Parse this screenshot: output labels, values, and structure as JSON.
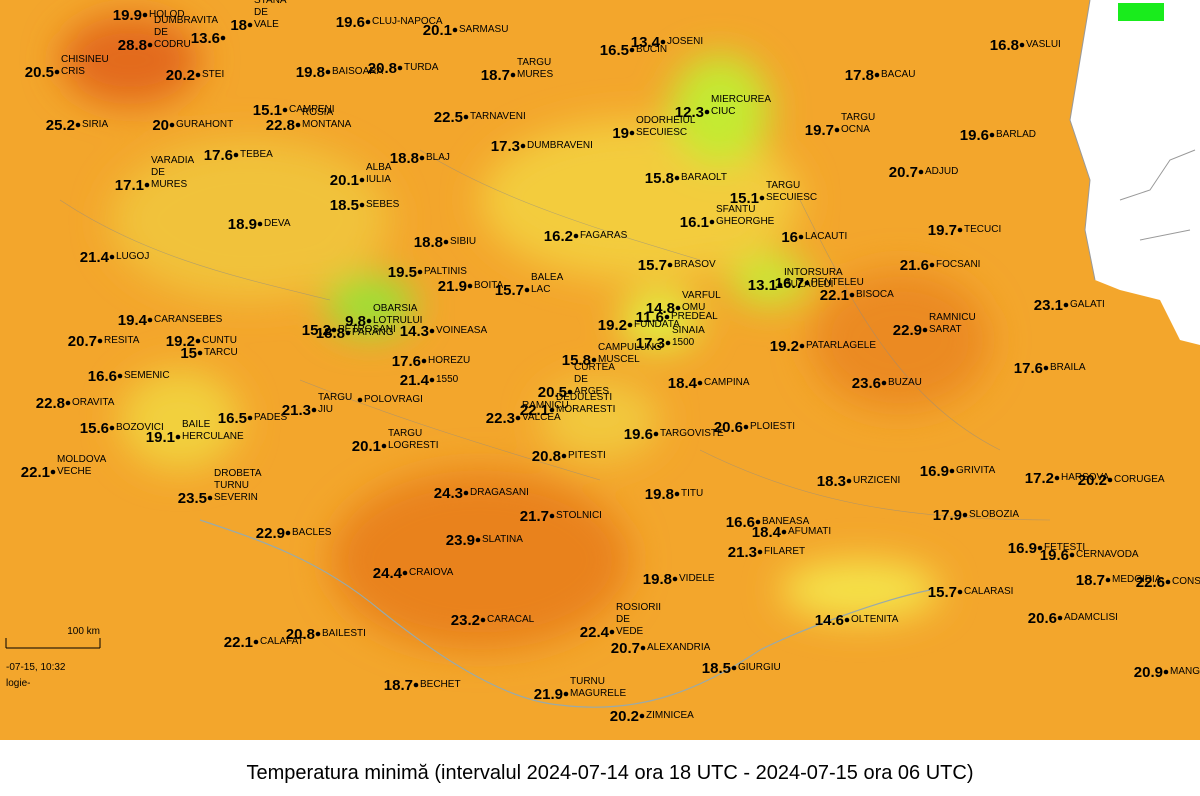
{
  "map": {
    "caption": "Temperatura minimă (intervalul 2024-07-14 ora 18 UTC - 2024-07-15 ora 06 UTC)",
    "scale_label": "100 km",
    "footer_lines": [
      "-07-15, 10:32",
      "logie-"
    ],
    "stations": [
      {
        "name": [
          "HOLOD"
        ],
        "value": 19.9
      },
      {
        "name": [
          "STANA",
          "DE",
          "VALE"
        ],
        "value": 18
      },
      {
        "name": [
          "CLUJ-NAPOCA"
        ],
        "value": 19.6
      },
      {
        "name": [
          "SARMASU"
        ],
        "value": 20.1
      },
      {
        "name": [
          "JOSENI"
        ],
        "value": 13.4
      },
      {
        "name": [
          "BUCIN"
        ],
        "value": 16.5
      },
      {
        "name": [
          "VASLUI"
        ],
        "value": 16.8
      },
      {
        "name": [
          "CHISINEU",
          "CRIS"
        ],
        "value": 20.5
      },
      {
        "name": [
          "DUMBRAVITA",
          "DE",
          "CODRU"
        ],
        "value": 28.8
      },
      {
        "value": 13.6
      },
      {
        "name": [
          "STEI"
        ],
        "value": 20.2
      },
      {
        "name": [
          "BAISOARA"
        ],
        "value": 19.8
      },
      {
        "name": [
          "TURDA"
        ],
        "value": 20.8
      },
      {
        "name": [
          "TARGU",
          "MURES"
        ],
        "value": 18.7
      },
      {
        "name": [
          "BACAU"
        ],
        "value": 17.8
      },
      {
        "name": [
          "MIERCUREA",
          "CIUC"
        ],
        "value": 12.3
      },
      {
        "name": [
          "ODORHEIUL",
          "SECUIESC"
        ],
        "value": 19
      },
      {
        "name": [
          "TARGU",
          "OCNA"
        ],
        "value": 19.7
      },
      {
        "name": [
          "BARLAD"
        ],
        "value": 19.6
      },
      {
        "name": [
          "SIRIA"
        ],
        "value": 25.2
      },
      {
        "name": [
          "GURAHONT"
        ],
        "value": 20
      },
      {
        "name": [
          "CAMPENI"
        ],
        "value": 15.1
      },
      {
        "name": [
          "ROSIA",
          "MONTANA"
        ],
        "value": 22.8
      },
      {
        "name": [
          "TARNAVENI"
        ],
        "value": 22.5
      },
      {
        "name": [
          "DUMBRAVENI"
        ],
        "value": 17.3
      },
      {
        "name": [
          "VARADIA",
          "DE",
          "MURES"
        ],
        "value": 17.1
      },
      {
        "name": [
          "TEBEA"
        ],
        "value": 17.6
      },
      {
        "name": [
          "ALBA",
          "IULIA"
        ],
        "value": 20.1
      },
      {
        "name": [
          "BLAJ"
        ],
        "value": 18.8
      },
      {
        "name": [
          "SEBES"
        ],
        "value": 18.5
      },
      {
        "name": [
          "BARAOLT"
        ],
        "value": 15.8
      },
      {
        "name": [
          "ADJUD"
        ],
        "value": 20.7
      },
      {
        "name": [
          "SFANTU",
          "GHEORGHE"
        ],
        "value": 16.1
      },
      {
        "name": [
          "TARGU",
          "SECUIESC"
        ],
        "value": 15.1
      },
      {
        "name": [
          "DEVA"
        ],
        "value": 18.9
      },
      {
        "name": [
          "FAGARAS"
        ],
        "value": 16.2
      },
      {
        "name": [
          "LACAUTI"
        ],
        "value": 16
      },
      {
        "name": [
          "TECUCI"
        ],
        "value": 19.7
      },
      {
        "name": [
          "LUGOJ"
        ],
        "value": 21.4
      },
      {
        "name": [
          "SIBIU"
        ],
        "value": 18.8
      },
      {
        "name": [
          "BRASOV"
        ],
        "value": 15.7
      },
      {
        "name": [
          "INTORSURA",
          "BUZAULUI"
        ],
        "value": 13.1
      },
      {
        "name": [
          "FOCSANI"
        ],
        "value": 21.6
      },
      {
        "name": [
          "PALTINIS"
        ],
        "value": 19.5
      },
      {
        "name": [
          "BOITA"
        ],
        "value": 21.9
      },
      {
        "name": [
          "BALEA",
          "LAC"
        ],
        "value": 15.7
      },
      {
        "name": [
          "VARFUL",
          "OMU"
        ],
        "value": 14.8
      },
      {
        "name": [
          "PENTELEU"
        ],
        "value": 16.7
      },
      {
        "name": [
          "BISOCA"
        ],
        "value": 22.1
      },
      {
        "name": [
          "GALATI"
        ],
        "value": 23.1
      },
      {
        "name": [
          "OBARSIA",
          "LOTRULUI"
        ],
        "value": 9.8
      },
      {
        "name": [
          "CARANSEBES"
        ],
        "value": 19.4
      },
      {
        "name": [
          "PETROSANI"
        ],
        "value": 15.2
      },
      {
        "name": [
          "PARANG"
        ],
        "value": 18.8
      },
      {
        "name": [
          "VOINEASA"
        ],
        "value": 14.3
      },
      {
        "name": [
          "FUNDATA"
        ],
        "value": 19.2
      },
      {
        "name": [
          "PREDEAL"
        ],
        "value": 11.6
      },
      {
        "name": [
          "SINAIA",
          "1500"
        ],
        "value": 17.3
      },
      {
        "name": [
          "RAMNICU",
          "SARAT"
        ],
        "value": 22.9
      },
      {
        "name": [
          "RESITA"
        ],
        "value": 20.7
      },
      {
        "name": [
          "CUNTU"
        ],
        "value": 19.2
      },
      {
        "name": [
          "TARCU"
        ],
        "value": 15
      },
      {
        "name": [
          "PATARLAGELE"
        ],
        "value": 19.2
      },
      {
        "name": [
          "HOREZU"
        ],
        "value": 17.6
      },
      {
        "name": [
          "1550"
        ],
        "value": 21.4
      },
      {
        "name": [
          "CURTEA",
          "DE",
          "ARGES"
        ],
        "value": 20.5
      },
      {
        "name": [
          "CAMPULUNG",
          "MUSCEL"
        ],
        "value": 15.8
      },
      {
        "name": [
          "CAMPINA"
        ],
        "value": 18.4
      },
      {
        "name": [
          "BRAILA"
        ],
        "value": 17.6
      },
      {
        "name": [
          "BUZAU"
        ],
        "value": 23.6
      },
      {
        "name": [
          "SEMENIC"
        ],
        "value": 16.6
      },
      {
        "name": [
          "ORAVITA"
        ],
        "value": 22.8
      },
      {
        "name": [
          "TARGU",
          "JIU"
        ],
        "value": 21.3
      },
      {
        "name": [
          "POLOVRAGI"
        ]
      },
      {
        "name": [
          "RAMNICU",
          "VALCEA"
        ],
        "value": 22.3
      },
      {
        "name": [
          "DEDULESTI",
          "MORARESTI"
        ],
        "value": 22.1
      },
      {
        "name": [
          "PADES"
        ],
        "value": 16.5
      },
      {
        "name": [
          "BAILE",
          "HERCULANE"
        ],
        "value": 19.1
      },
      {
        "name": [
          "BOZOVICI"
        ],
        "value": 15.6
      },
      {
        "name": [
          "TARGU",
          "LOGRESTI"
        ],
        "value": 20.1
      },
      {
        "name": [
          "PITESTI"
        ],
        "value": 20.8
      },
      {
        "name": [
          "TARGOVISTE"
        ],
        "value": 19.6
      },
      {
        "name": [
          "PLOIESTI"
        ],
        "value": 20.6
      },
      {
        "name": [
          "MOLDOVA",
          "VECHE"
        ],
        "value": 22.1
      },
      {
        "name": [
          "URZICENI"
        ],
        "value": 18.3
      },
      {
        "name": [
          "GRIVITA"
        ],
        "value": 16.9
      },
      {
        "name": [
          "HARSOVA"
        ],
        "value": 17.2
      },
      {
        "name": [
          "CORUGEA"
        ],
        "value": 20.2
      },
      {
        "name": [
          "DROBETA",
          "TURNU",
          "SEVERIN"
        ],
        "value": 23.5
      },
      {
        "name": [
          "DRAGASANI"
        ],
        "value": 24.3
      },
      {
        "name": [
          "STOLNICI"
        ],
        "value": 21.7
      },
      {
        "name": [
          "TITU"
        ],
        "value": 19.8
      },
      {
        "name": [
          "SLOBOZIA"
        ],
        "value": 17.9
      },
      {
        "name": [
          "BACLES"
        ],
        "value": 22.9
      },
      {
        "name": [
          "SLATINA"
        ],
        "value": 23.9
      },
      {
        "name": [
          "BANEASA"
        ],
        "value": 16.6
      },
      {
        "name": [
          "AFUMATI"
        ],
        "value": 18.4
      },
      {
        "name": [
          "FILARET"
        ],
        "value": 21.3
      },
      {
        "name": [
          "FETESTI"
        ],
        "value": 16.9
      },
      {
        "name": [
          "CERNAVODA"
        ],
        "value": 19.6
      },
      {
        "name": [
          "CRAIOVA"
        ],
        "value": 24.4
      },
      {
        "name": [
          "VIDELE"
        ],
        "value": 19.8
      },
      {
        "name": [
          "MEDGIDIA"
        ],
        "value": 18.7
      },
      {
        "name": [
          "CONSTANTA"
        ],
        "value": 22.6
      },
      {
        "name": [
          "CALARASI"
        ],
        "value": 15.7
      },
      {
        "name": [
          "CARACAL"
        ],
        "value": 23.2
      },
      {
        "name": [
          "ROSIORII",
          "DE",
          "VEDE"
        ],
        "value": 22.4
      },
      {
        "name": [
          "OLTENITA"
        ],
        "value": 14.6
      },
      {
        "name": [
          "ADAMCLISI"
        ],
        "value": 20.6
      },
      {
        "name": [
          "ALEXANDRIA"
        ],
        "value": 20.7
      },
      {
        "name": [
          "CALAFAT"
        ],
        "value": 22.1
      },
      {
        "name": [
          "BAILESTI"
        ],
        "value": 20.8
      },
      {
        "name": [
          "GIURGIU"
        ],
        "value": 18.5
      },
      {
        "name": [
          "MANGALIA"
        ],
        "value": 20.9
      },
      {
        "name": [
          "BECHET"
        ],
        "value": 18.7
      },
      {
        "name": [
          "TURNU",
          "MAGURELE"
        ],
        "value": 21.9
      },
      {
        "name": [
          "ZIMNICEA"
        ],
        "value": 20.2
      }
    ]
  }
}
